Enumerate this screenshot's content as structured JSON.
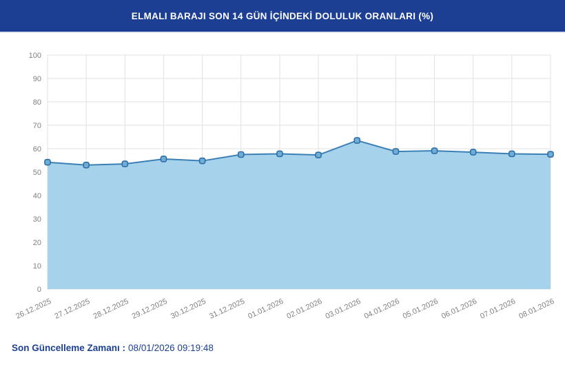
{
  "header": {
    "title": "ELMALI BARAJI SON 14 GÜN İÇİNDEKİ DOLULUK ORANLARI (%)"
  },
  "footer": {
    "label": "Son Güncelleme Zamanı :",
    "value": "08/01/2026 09:19:48"
  },
  "colors": {
    "header_bg": "#1c3f94",
    "footer_text": "#1c3f94",
    "area_fill": "#a6d2ec",
    "line": "#3a7fb5",
    "marker_stroke": "#2c6ea6",
    "marker_fill": "#6fadd6",
    "grid": "#e1e1e1",
    "tick_text": "#808080"
  },
  "chart_data": {
    "type": "area",
    "title": "ELMALI BARAJI SON 14 GÜN İÇİNDEKİ DOLULUK ORANLARI (%)",
    "xlabel": "",
    "ylabel": "",
    "categories": [
      "26.12.2025",
      "27.12.2025",
      "28.12.2025",
      "29.12.2025",
      "30.12.2025",
      "31.12.2025",
      "01.01.2026",
      "02.01.2026",
      "03.01.2026",
      "04.01.2026",
      "05.01.2026",
      "06.01.2026",
      "07.01.2026",
      "08.01.2026"
    ],
    "values": [
      54.2,
      53.0,
      53.5,
      55.6,
      54.8,
      57.5,
      57.8,
      57.3,
      63.5,
      58.8,
      59.1,
      58.5,
      57.8,
      57.6
    ],
    "ylim": [
      0,
      100
    ],
    "ytick_step": 10,
    "grid": true,
    "legend": "none"
  }
}
